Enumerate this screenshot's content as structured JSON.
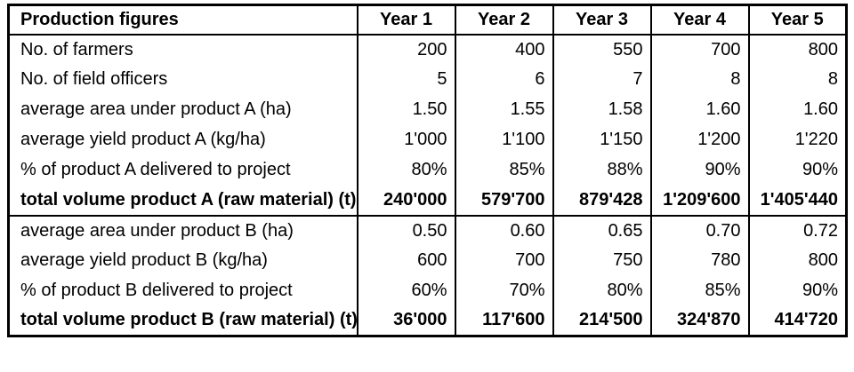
{
  "colors": {
    "background": "#ffffff",
    "border": "#000000",
    "text": "#000000"
  },
  "chart_data": {
    "type": "table",
    "title": "Production figures",
    "columns": [
      "Year 1",
      "Year 2",
      "Year 3",
      "Year 4",
      "Year 5"
    ],
    "rows": [
      {
        "label": "No. of farmers",
        "values": [
          "200",
          "400",
          "550",
          "700",
          "800"
        ],
        "bold": false,
        "section_end": false
      },
      {
        "label": "No. of field officers",
        "values": [
          "5",
          "6",
          "7",
          "8",
          "8"
        ],
        "bold": false,
        "section_end": false
      },
      {
        "label": "average area under product A (ha)",
        "values": [
          "1.50",
          "1.55",
          "1.58",
          "1.60",
          "1.60"
        ],
        "bold": false,
        "section_end": false
      },
      {
        "label": "average yield product A (kg/ha)",
        "values": [
          "1'000",
          "1'100",
          "1'150",
          "1'200",
          "1'220"
        ],
        "bold": false,
        "section_end": false
      },
      {
        "label": "% of product A delivered to project",
        "values": [
          "80%",
          "85%",
          "88%",
          "90%",
          "90%"
        ],
        "bold": false,
        "section_end": false
      },
      {
        "label": "total volume product A (raw material) (t)",
        "values": [
          "240'000",
          "579'700",
          "879'428",
          "1'209'600",
          "1'405'440"
        ],
        "bold": true,
        "section_end": true
      },
      {
        "label": "average area under product B (ha)",
        "values": [
          "0.50",
          "0.60",
          "0.65",
          "0.70",
          "0.72"
        ],
        "bold": false,
        "section_end": false
      },
      {
        "label": "average yield product B (kg/ha)",
        "values": [
          "600",
          "700",
          "750",
          "780",
          "800"
        ],
        "bold": false,
        "section_end": false
      },
      {
        "label": "% of product B delivered to project",
        "values": [
          "60%",
          "70%",
          "80%",
          "85%",
          "90%"
        ],
        "bold": false,
        "section_end": false
      },
      {
        "label": "total volume product B (raw material) (t)",
        "values": [
          "36'000",
          "117'600",
          "214'500",
          "324'870",
          "414'720"
        ],
        "bold": true,
        "section_end": false
      }
    ]
  }
}
